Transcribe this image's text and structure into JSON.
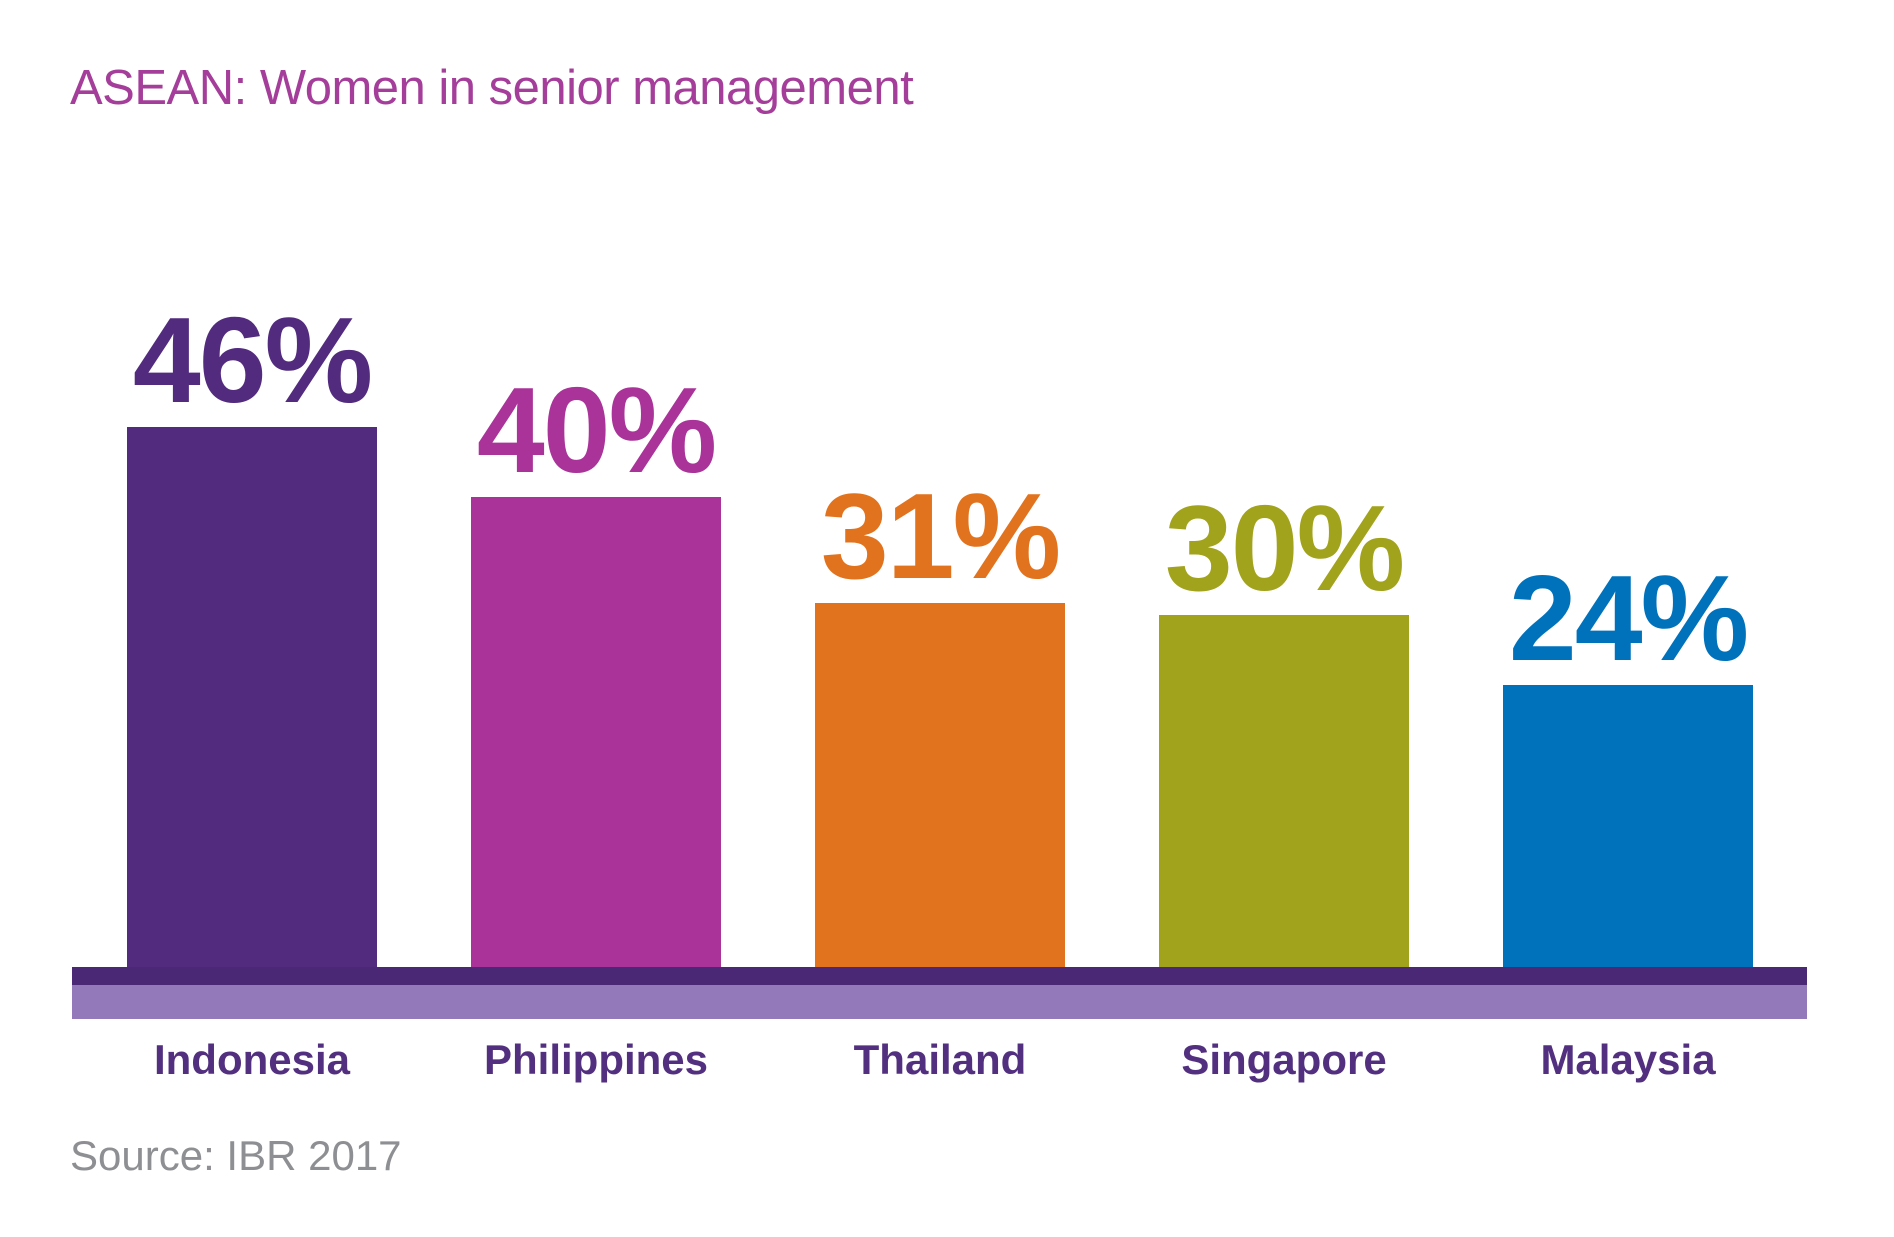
{
  "title": "ASEAN: Women in senior management",
  "source": "Source: IBR 2017",
  "colors": {
    "background": "#FFFFFF",
    "title_text": "#A43E9A",
    "category_label_text": "#52307F",
    "source_text": "#8E8F92",
    "baseline_dark": "#4A2876",
    "baseline_light": "#9379B9"
  },
  "chart_data": {
    "type": "bar",
    "title": "ASEAN: Women in senior management",
    "categories": [
      "Indonesia",
      "Philippines",
      "Thailand",
      "Singapore",
      "Malaysia"
    ],
    "values": [
      46,
      40,
      31,
      30,
      24
    ],
    "value_labels": [
      "46%",
      "40%",
      "31%",
      "30%",
      "24%"
    ],
    "bar_colors": [
      "#522A7E",
      "#A93399",
      "#E2731E",
      "#A2A31C",
      "#0072BC"
    ],
    "unit": "%",
    "ylim": [
      0,
      46
    ],
    "xlabel": "",
    "ylabel": "",
    "grid": false,
    "legend": "none",
    "value_label_position": "above-bar",
    "source": "Source: IBR 2017"
  }
}
